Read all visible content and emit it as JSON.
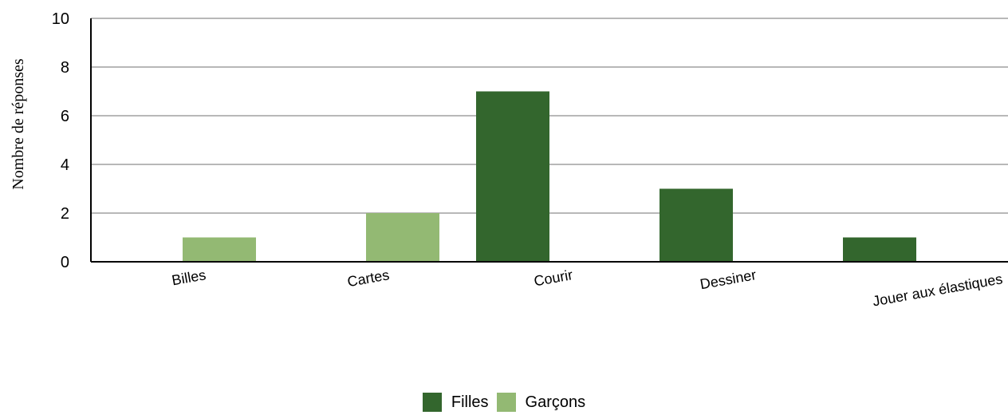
{
  "chart_data": {
    "type": "bar",
    "categories": [
      "Billes",
      "Cartes",
      "Courir",
      "Dessiner",
      "Jouer aux élastiques"
    ],
    "series": [
      {
        "name": "Filles",
        "values": [
          0,
          0,
          7,
          3,
          1
        ],
        "color": "#33662d"
      },
      {
        "name": "Garçons",
        "values": [
          1,
          2,
          0,
          0,
          0
        ],
        "color": "#93b973"
      }
    ],
    "title": "",
    "xlabel": "",
    "ylabel": "Nombre de réponses",
    "ylim": [
      0,
      10
    ],
    "yticks": [
      "0",
      "2",
      "4",
      "6",
      "8",
      "10"
    ],
    "grid": true,
    "legend_position": "bottom"
  }
}
